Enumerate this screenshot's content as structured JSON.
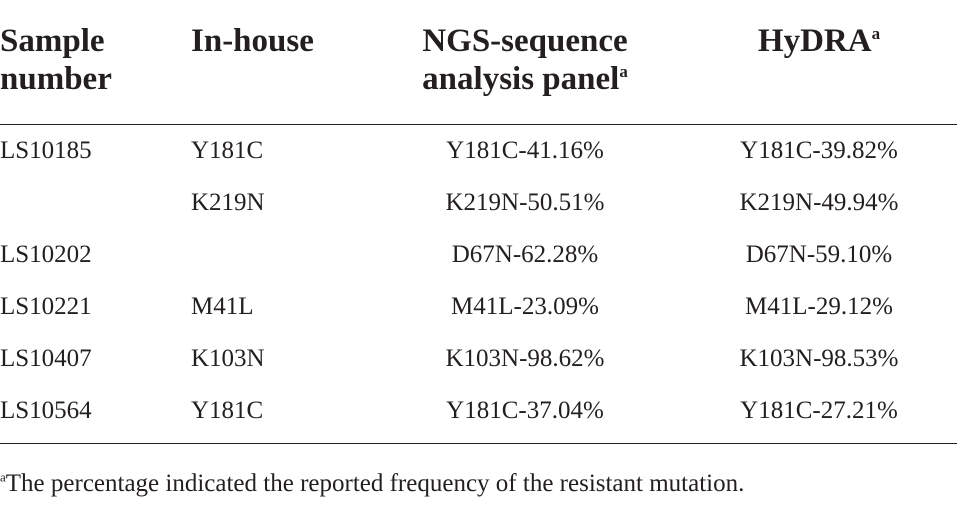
{
  "table": {
    "headers": {
      "sample_line1": "Sample",
      "sample_line2": "number",
      "inhouse": "In-house",
      "ngs_line1": "NGS-sequence",
      "ngs_line2": "analysis panel",
      "ngs_mark": "a",
      "hydra": "HyDRA",
      "hydra_mark": "a"
    },
    "rows": [
      {
        "sample": "LS10185",
        "inhouse": "Y181C",
        "ngs": "Y181C-41.16%",
        "hydra": "Y181C-39.82%"
      },
      {
        "sample": "",
        "inhouse": "K219N",
        "ngs": "K219N-50.51%",
        "hydra": "K219N-49.94%"
      },
      {
        "sample": "LS10202",
        "inhouse": "",
        "ngs": "D67N-62.28%",
        "hydra": "D67N-59.10%"
      },
      {
        "sample": "LS10221",
        "inhouse": "M41L",
        "ngs": "M41L-23.09%",
        "hydra": "M41L-29.12%"
      },
      {
        "sample": "LS10407",
        "inhouse": "K103N",
        "ngs": "K103N-98.62%",
        "hydra": "K103N-98.53%"
      },
      {
        "sample": "LS10564",
        "inhouse": "Y181C",
        "ngs": "Y181C-37.04%",
        "hydra": "Y181C-27.21%"
      }
    ]
  },
  "footnote": {
    "mark": "a",
    "text": "The percentage indicated the reported frequency of the resistant mutation."
  }
}
